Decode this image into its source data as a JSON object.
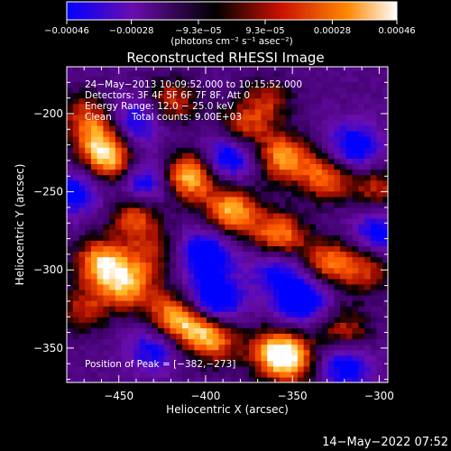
{
  "chart_data": {
    "type": "heatmap",
    "title": "Reconstructed RHESSI Image",
    "xlabel": "Heliocentric X (arcsec)",
    "ylabel": "Heliocentric Y (arcsec)",
    "xlim": [
      -480,
      -295
    ],
    "ylim": [
      -372,
      -170
    ],
    "x_ticks": [
      -450,
      -400,
      -350,
      -300
    ],
    "y_ticks": [
      -200,
      -250,
      -300,
      -350
    ],
    "x_tick_labels": [
      "−450",
      "−400",
      "−350",
      "−300"
    ],
    "y_tick_labels": [
      "−200",
      "−250",
      "−300",
      "−350"
    ],
    "colorbar": {
      "range": [
        -0.00046,
        0.00046
      ],
      "ticks": [
        -0.00046,
        -0.00028,
        -9.3e-05,
        9.3e-05,
        0.00028,
        0.00046
      ],
      "tick_labels": [
        "−0.00046",
        "−0.00028",
        "−9.3e−05",
        "9.3e−05",
        "0.00028",
        "0.00046"
      ],
      "unit_label": "(photons cm⁻² s⁻¹ asec⁻²)",
      "colors": [
        "#0000ff",
        "#6a0dad",
        "#000000",
        "#cc1100",
        "#ff8800",
        "#ffffff"
      ]
    },
    "annotations": {
      "time_range": "24−May−2013 10:09:52.000 to 10:15:52.000",
      "detectors": "Detectors: 3F 4F 5F 6F 7F 8F, Att 0",
      "energy_range": "Energy Range: 12.0 − 25.0 keV",
      "method": "Clean",
      "total_counts": "Total counts: 9.00E+03",
      "peak_position": "Position of Peak = [−382,−273]"
    },
    "peak": {
      "x": -382,
      "y": -273
    },
    "features": [
      {
        "x": -410,
        "y": -240,
        "amp": 1.0
      },
      {
        "x": -385,
        "y": -262,
        "amp": 0.9
      },
      {
        "x": -358,
        "y": -278,
        "amp": 0.85
      },
      {
        "x": -330,
        "y": -295,
        "amp": 0.7
      },
      {
        "x": -308,
        "y": -300,
        "amp": 0.55
      },
      {
        "x": -455,
        "y": -230,
        "amp": 0.85
      },
      {
        "x": -462,
        "y": -215,
        "amp": 0.6
      },
      {
        "x": -440,
        "y": -265,
        "amp": 0.7
      },
      {
        "x": -460,
        "y": -295,
        "amp": 0.9
      },
      {
        "x": -445,
        "y": -310,
        "amp": 0.8
      },
      {
        "x": -420,
        "y": -330,
        "amp": 0.75
      },
      {
        "x": -405,
        "y": -335,
        "amp": 0.6
      },
      {
        "x": -395,
        "y": -345,
        "amp": 0.65
      },
      {
        "x": -360,
        "y": -352,
        "amp": 0.8
      },
      {
        "x": -350,
        "y": -358,
        "amp": 0.7
      },
      {
        "x": -320,
        "y": -340,
        "amp": 0.6
      },
      {
        "x": -420,
        "y": -192,
        "amp": 0.6
      },
      {
        "x": -380,
        "y": -212,
        "amp": 0.75
      },
      {
        "x": -355,
        "y": -228,
        "amp": 0.85
      },
      {
        "x": -330,
        "y": -240,
        "amp": 0.75
      },
      {
        "x": -300,
        "y": -248,
        "amp": 0.55
      },
      {
        "x": -365,
        "y": -192,
        "amp": 0.5
      },
      {
        "x": -470,
        "y": -325,
        "amp": 0.5
      },
      {
        "x": -470,
        "y": -200,
        "amp": 0.45
      },
      {
        "x": -430,
        "y": -290,
        "amp": 0.45
      },
      {
        "x": -385,
        "y": -225,
        "amp": -0.9
      },
      {
        "x": -400,
        "y": -290,
        "amp": -0.8
      },
      {
        "x": -345,
        "y": -318,
        "amp": -0.85
      },
      {
        "x": -435,
        "y": -245,
        "amp": -0.7
      },
      {
        "x": -475,
        "y": -250,
        "amp": -0.6
      },
      {
        "x": -395,
        "y": -320,
        "amp": -0.9
      },
      {
        "x": -315,
        "y": -222,
        "amp": -0.7
      },
      {
        "x": -320,
        "y": -360,
        "amp": -0.7
      },
      {
        "x": -430,
        "y": -350,
        "amp": -0.55
      },
      {
        "x": -440,
        "y": -205,
        "amp": -0.6
      },
      {
        "x": -300,
        "y": -275,
        "amp": -0.6
      },
      {
        "x": -360,
        "y": -298,
        "amp": -0.5
      }
    ]
  },
  "footer": {
    "timestamp": "14−May−2022 07:52"
  }
}
